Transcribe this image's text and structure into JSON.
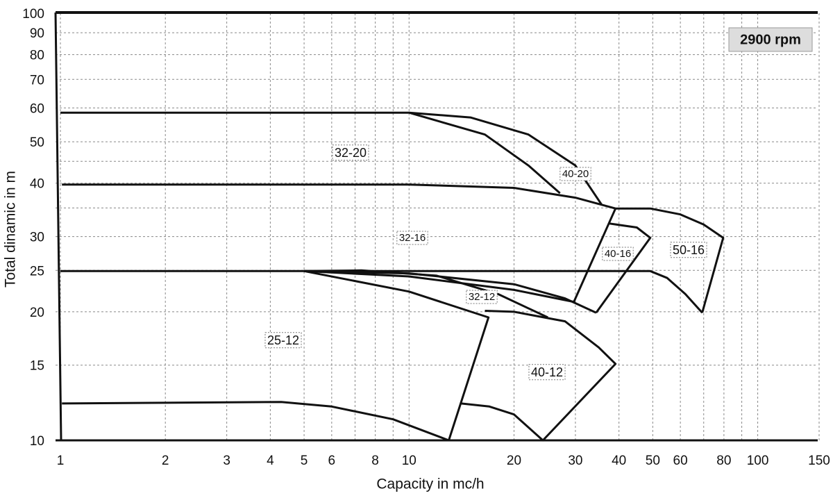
{
  "chart_data": {
    "type": "line",
    "xlabel": "Capacity in mc/h",
    "ylabel": "Total dinamic in m",
    "annotation": "2900 rpm",
    "xscale": "log",
    "yscale": "log",
    "grid": true,
    "xlim": [
      1,
      150
    ],
    "ylim": [
      10,
      100
    ],
    "xticks": [
      1,
      2,
      3,
      4,
      5,
      6,
      8,
      10,
      20,
      30,
      40,
      50,
      60,
      80,
      100,
      150
    ],
    "yticks": [
      10,
      15,
      20,
      25,
      30,
      40,
      50,
      60,
      70,
      80,
      90,
      100
    ],
    "minor_xgrid": [
      7,
      9,
      70,
      90
    ],
    "minor_ygrid": [
      35,
      45
    ],
    "color": "#111111",
    "region_labels": [
      "32-20",
      "40-20",
      "32-16",
      "40-16",
      "50-16",
      "32-12",
      "25-12",
      "40-12"
    ],
    "curves": [
      {
        "x": [
          1,
          10,
          16.5,
          22,
          27.1
        ],
        "y": [
          58.5,
          58.5,
          52,
          44,
          37.9
        ]
      },
      {
        "x": [
          10,
          15,
          22,
          30,
          35.7
        ],
        "y": [
          58.5,
          57,
          52,
          44,
          35.6
        ]
      },
      {
        "x": [
          1.01,
          10,
          20,
          30,
          39.1
        ],
        "y": [
          39.7,
          39.7,
          39,
          37,
          34.9
        ]
      },
      {
        "x": [
          39.1,
          49.2,
          60,
          70,
          79.6,
          69.3
        ],
        "y": [
          34.9,
          34.9,
          33.8,
          32,
          29.8,
          19.9
        ]
      },
      {
        "x": [
          29.7,
          39.1
        ],
        "y": [
          21.1,
          34.9
        ]
      },
      {
        "x": [
          37.4,
          45,
          49.2,
          34.4
        ],
        "y": [
          32.2,
          31.5,
          29.8,
          19.9
        ]
      },
      {
        "x": [
          1,
          49.2,
          55,
          62,
          69.3
        ],
        "y": [
          24.9,
          24.9,
          24,
          22,
          19.9
        ]
      },
      {
        "x": [
          5,
          10,
          20,
          29.7
        ],
        "y": [
          24.9,
          24.2,
          22.5,
          21.1
        ]
      },
      {
        "x": [
          5,
          10,
          20,
          28,
          34.4
        ],
        "y": [
          24.9,
          24.6,
          23.2,
          21.5,
          19.9
        ]
      },
      {
        "x": [
          5,
          7.3,
          12,
          18,
          25
        ],
        "y": [
          24.9,
          25,
          24.3,
          22,
          19.4
        ]
      },
      {
        "x": [
          5,
          10,
          16.9,
          13
        ],
        "y": [
          24.9,
          22.3,
          19.4,
          10
        ]
      },
      {
        "x": [
          16.5,
          20,
          28,
          35,
          39.1,
          24.2,
          20,
          17,
          14.1
        ],
        "y": [
          20.1,
          20,
          19,
          16.5,
          15.1,
          10,
          11.5,
          12,
          12.2
        ]
      },
      {
        "x": [
          1.01,
          4.3,
          6,
          9,
          13
        ],
        "y": [
          12.2,
          12.3,
          12,
          11.2,
          10
        ]
      }
    ]
  }
}
